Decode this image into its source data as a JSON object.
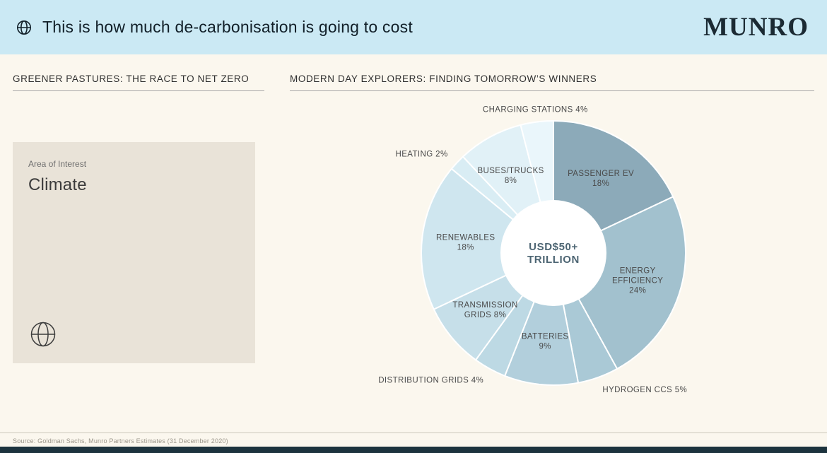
{
  "header": {
    "title": "This is how much de-carbonisation is going to cost",
    "logo": "MUNRO"
  },
  "left": {
    "heading": "GREENER PASTURES: THE RACE TO NET ZERO",
    "card": {
      "label": "Area of Interest",
      "value": "Climate"
    }
  },
  "right": {
    "heading": "MODERN DAY EXPLORERS: FINDING TOMORROW’S WINNERS"
  },
  "footer": {
    "source": "Source: Goldman Sachs, Munro Partners Estimates (31 December 2020)"
  },
  "colors": {
    "header_background": "#cbe9f4",
    "page_background": "#fbf7ee",
    "card_background": "#e9e3d8",
    "bottom_bar": "#1c333e"
  },
  "chart_data": {
    "type": "pie",
    "style": "donut",
    "title": "",
    "center_label_lines": [
      "USD$50+",
      "TRILLION"
    ],
    "center_label": "USD$50+ TRILLION",
    "total": 100,
    "start_angle_deg": 0,
    "direction": "clockwise",
    "legend": "none",
    "segments": [
      {
        "name": "PASSENGER EV",
        "value": 18,
        "unit": "%",
        "color": "#8caab9",
        "label_pos": "inside",
        "label_lines": [
          "PASSENGER EV",
          "18%"
        ]
      },
      {
        "name": "ENERGY EFFICIENCY",
        "value": 24,
        "unit": "%",
        "color": "#a2c1ce",
        "label_pos": "inside",
        "label_lines": [
          "ENERGY",
          "EFFICIENCY",
          "24%"
        ]
      },
      {
        "name": "HYDROGEN CCS",
        "value": 5,
        "unit": "%",
        "color": "#aac9d6",
        "label_pos": "outside",
        "label_lines": [
          "HYDROGEN CCS 5%"
        ]
      },
      {
        "name": "BATTERIES",
        "value": 9,
        "unit": "%",
        "color": "#b2cfdc",
        "label_pos": "inside",
        "label_lines": [
          "BATTERIES",
          "9%"
        ]
      },
      {
        "name": "DISTRIBUTION GRIDS",
        "value": 4,
        "unit": "%",
        "color": "#bdd9e4",
        "label_pos": "outside",
        "label_lines": [
          "DISTRIBUTION GRIDS 4%"
        ]
      },
      {
        "name": "TRANSMISSION GRIDS",
        "value": 8,
        "unit": "%",
        "color": "#c6dfe9",
        "label_pos": "inside",
        "label_lines": [
          "TRANSMISSION",
          "GRIDS 8%"
        ]
      },
      {
        "name": "RENEWABLES",
        "value": 18,
        "unit": "%",
        "color": "#cfe6ef",
        "label_pos": "inside",
        "label_lines": [
          "RENEWABLES",
          "18%"
        ]
      },
      {
        "name": "HEATING",
        "value": 2,
        "unit": "%",
        "color": "#d9edf4",
        "label_pos": "outside",
        "label_lines": [
          "HEATING 2%"
        ]
      },
      {
        "name": "BUSES/TRUCKS",
        "value": 8,
        "unit": "%",
        "color": "#e1f1f7",
        "label_pos": "inside",
        "label_lines": [
          "BUSES/TRUCKS",
          "8%"
        ]
      },
      {
        "name": "CHARGING STATIONS",
        "value": 4,
        "unit": "%",
        "color": "#eaf6fb",
        "label_pos": "outside",
        "label_lines": [
          "CHARGING STATIONS 4%"
        ]
      }
    ]
  }
}
